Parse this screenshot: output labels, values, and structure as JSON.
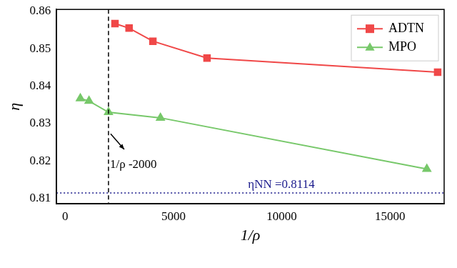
{
  "chart_data": {
    "type": "line",
    "x_label": "1/ρ",
    "y_label": "η",
    "xlim": [
      -400,
      17500
    ],
    "xticks": [
      0,
      5000,
      10000,
      15000
    ],
    "ylim": [
      0.8085,
      0.8605
    ],
    "yticks": [
      0.81,
      0.82,
      0.83,
      0.84,
      0.85,
      0.86
    ],
    "grid": false,
    "legend": "top-right",
    "series": [
      {
        "name": "ADTN",
        "color": "#f04848",
        "marker": "square",
        "line_style": "solid",
        "x": [
          2300,
          2950,
          4050,
          6550,
          17200
        ],
        "values": [
          0.8567,
          0.8555,
          0.852,
          0.8475,
          0.8437
        ]
      },
      {
        "name": "MPO",
        "color": "#77c86a",
        "marker": "triangle",
        "line_style": "solid",
        "x": [
          700,
          1100,
          2000,
          4400,
          16700
        ],
        "values": [
          0.8367,
          0.836,
          0.833,
          0.8315,
          0.8178
        ]
      }
    ],
    "annotations": [
      {
        "x": 2000,
        "text": "1/ρ -2000",
        "color": "#000000",
        "line_style": "dashed"
      },
      {
        "y": 0.8114,
        "text": "ηNN =0.8114",
        "color": "#1a1a8c",
        "line_style": "dotted"
      }
    ]
  }
}
